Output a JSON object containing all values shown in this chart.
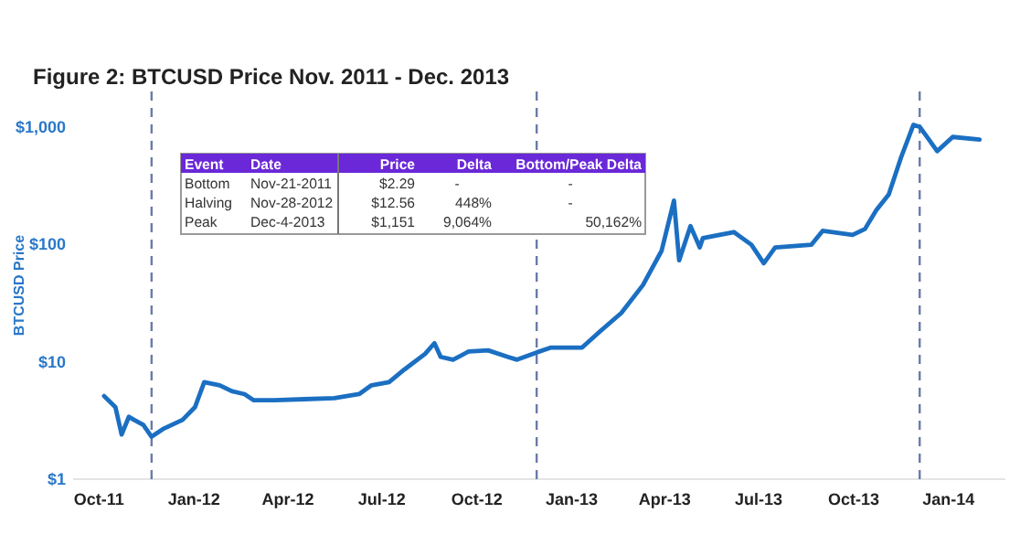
{
  "chart_data": {
    "type": "line",
    "title": "Figure 2: BTCUSD Price Nov. 2011 - Dec. 2013",
    "ylabel": "BTCUSD Price",
    "log": "y",
    "grid": false,
    "line_style": "solid",
    "xlim": [
      "2011-09-06",
      "2014-02-25"
    ],
    "ylim": [
      1,
      2000
    ],
    "xticks": [
      {
        "value": "2011-10-01",
        "label": "Oct-11"
      },
      {
        "value": "2012-01-01",
        "label": "Jan-12"
      },
      {
        "value": "2012-04-01",
        "label": "Apr-12"
      },
      {
        "value": "2012-07-01",
        "label": "Jul-12"
      },
      {
        "value": "2012-10-01",
        "label": "Oct-12"
      },
      {
        "value": "2013-01-01",
        "label": "Jan-13"
      },
      {
        "value": "2013-04-01",
        "label": "Apr-13"
      },
      {
        "value": "2013-07-01",
        "label": "Jul-13"
      },
      {
        "value": "2013-10-01",
        "label": "Oct-13"
      },
      {
        "value": "2014-01-01",
        "label": "Jan-14"
      }
    ],
    "yticks": [
      {
        "value": 1,
        "label": "$1"
      },
      {
        "value": 10,
        "label": "$10"
      },
      {
        "value": 100,
        "label": "$100"
      },
      {
        "value": 1000,
        "label": "$1,000"
      }
    ],
    "x": [
      "2011-10-06",
      "2011-10-17",
      "2011-10-23",
      "2011-10-30",
      "2011-11-04",
      "2011-11-13",
      "2011-11-21",
      "2011-12-03",
      "2011-12-21",
      "2012-01-02",
      "2012-01-11",
      "2012-01-26",
      "2012-02-07",
      "2012-02-19",
      "2012-02-28",
      "2012-03-19",
      "2012-04-17",
      "2012-05-16",
      "2012-06-09",
      "2012-06-21",
      "2012-07-08",
      "2012-07-23",
      "2012-08-12",
      "2012-08-21",
      "2012-08-27",
      "2012-09-08",
      "2012-09-23",
      "2012-10-12",
      "2012-10-31",
      "2012-11-09",
      "2012-11-28",
      "2012-12-12",
      "2013-01-11",
      "2013-01-28",
      "2013-02-18",
      "2013-03-11",
      "2013-03-29",
      "2013-04-10",
      "2013-04-15",
      "2013-04-26",
      "2013-05-05",
      "2013-05-08",
      "2013-06-07",
      "2013-06-24",
      "2013-07-06",
      "2013-07-17",
      "2013-08-21",
      "2013-09-01",
      "2013-09-30",
      "2013-10-12",
      "2013-10-23",
      "2013-11-04",
      "2013-11-16",
      "2013-11-28",
      "2013-12-04",
      "2013-12-12",
      "2013-12-21",
      "2014-01-05",
      "2014-01-31"
    ],
    "series": [
      {
        "color": "#1b6fc2",
        "values": [
          5.1,
          4.1,
          2.4,
          3.4,
          3.2,
          2.9,
          2.3,
          2.7,
          3.2,
          4.1,
          6.7,
          6.3,
          5.6,
          5.3,
          4.7,
          4.7,
          4.8,
          4.9,
          5.3,
          6.3,
          6.7,
          8.6,
          11.7,
          14.4,
          11,
          10.4,
          12.2,
          12.5,
          11,
          10.4,
          12,
          13.2,
          13.2,
          18,
          26,
          45,
          88,
          235,
          73,
          143,
          94,
          113,
          127,
          99,
          69,
          94,
          99,
          130,
          120,
          135,
          195,
          265,
          550,
          1040,
          1000,
          800,
          620,
          820,
          780
        ]
      }
    ],
    "ref_lines": [
      {
        "axis": "x",
        "value": "2011-11-21",
        "color": "#6b7aa8",
        "line_style": "dashed"
      },
      {
        "axis": "x",
        "value": "2012-11-28",
        "color": "#6b7aa8",
        "line_style": "dashed"
      },
      {
        "axis": "x",
        "value": "2013-12-04",
        "color": "#6b7aa8",
        "line_style": "dashed"
      }
    ],
    "annotations": [
      "Event",
      "Date",
      "Price",
      "Delta",
      "Bottom/Peak Delta",
      "Bottom",
      "Nov-21-2011",
      "$2.29",
      "-",
      "-",
      "Halving",
      "Nov-28-2012",
      "$12.56",
      "448%",
      "-",
      "Peak",
      "Dec-4-2013",
      "$1,151",
      "9,064%",
      "50,162%"
    ]
  }
}
